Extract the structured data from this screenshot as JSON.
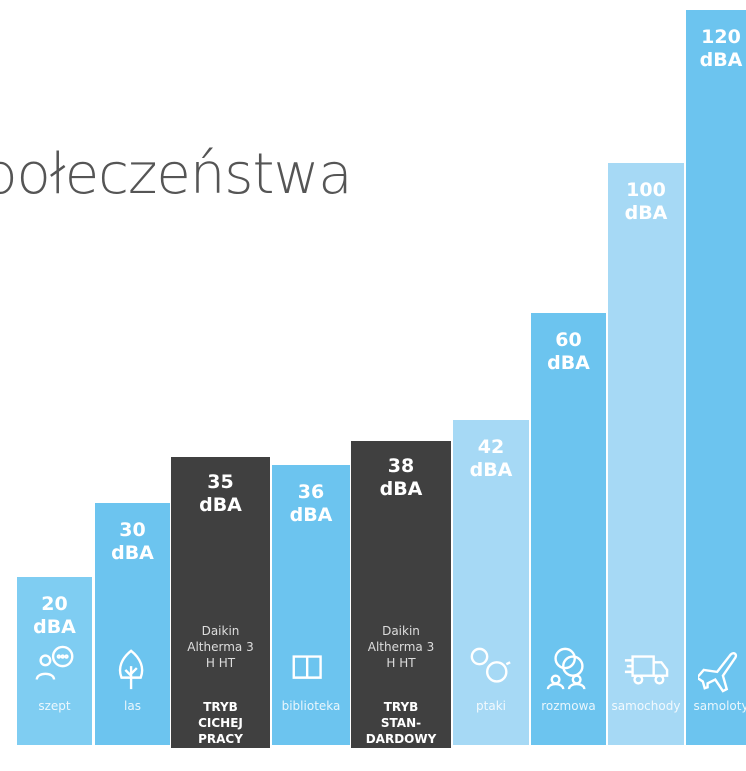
{
  "title": "połeczeństwa",
  "columns": [
    {
      "level": [
        "20",
        "dBA"
      ],
      "name": "szept"
    },
    {
      "level": [
        "30",
        "dBA"
      ],
      "name": "las"
    },
    {
      "level": [
        "35",
        "dBA"
      ],
      "device": [
        "Daikin",
        "Altherma 3",
        "H HT"
      ],
      "mode": [
        "TRYB",
        "CICHEJ",
        "PRACY"
      ]
    },
    {
      "level": [
        "36",
        "dBA"
      ],
      "name": "biblioteka"
    },
    {
      "level": [
        "38",
        "dBA"
      ],
      "device": [
        "Daikin",
        "Altherma 3",
        "H HT"
      ],
      "mode": [
        "TRYB",
        "STAN-",
        "DARDOWY"
      ]
    },
    {
      "level": [
        "42",
        "dBA"
      ],
      "name": "ptaki"
    },
    {
      "level": [
        "60",
        "dBA"
      ],
      "name": "rozmowa"
    },
    {
      "level": [
        "100",
        "dBA"
      ],
      "name": "samochody"
    },
    {
      "level": [
        "120",
        "dBA"
      ],
      "name": "samoloty"
    }
  ]
}
